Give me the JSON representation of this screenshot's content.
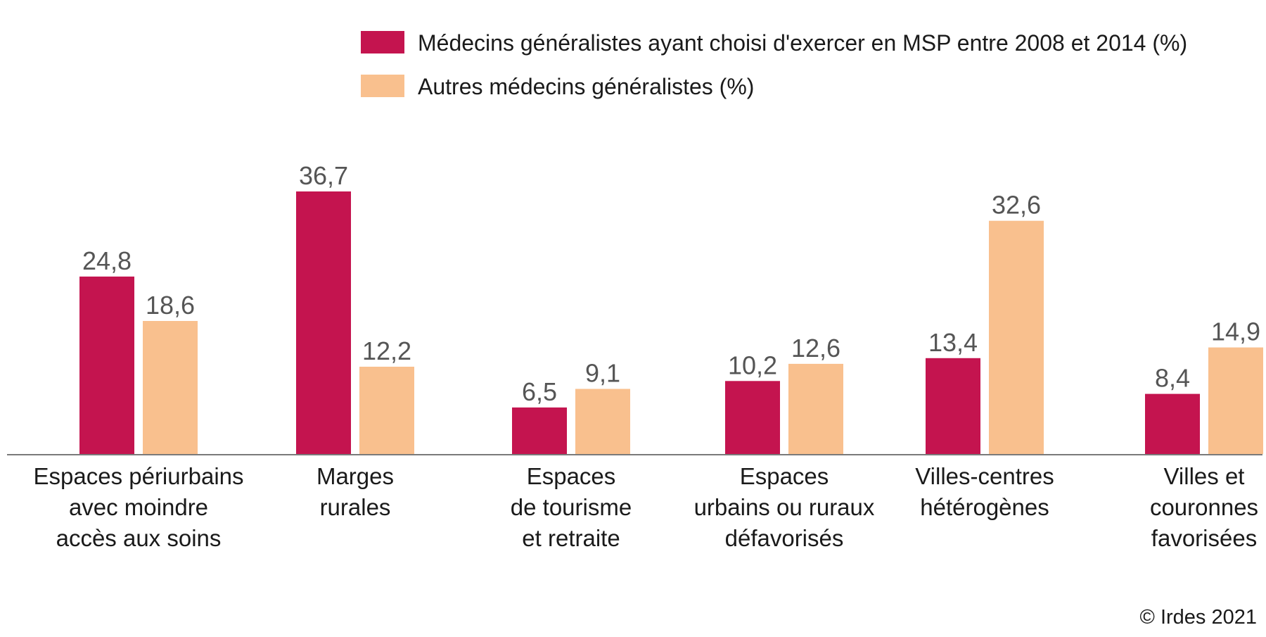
{
  "chart_data": {
    "type": "bar",
    "categories": [
      [
        "Espaces périurbains",
        "avec moindre",
        "accès aux soins"
      ],
      [
        "Marges",
        "rurales"
      ],
      [
        "Espaces",
        "de tourisme",
        "et retraite"
      ],
      [
        "Espaces",
        "urbains ou ruraux",
        "défavorisés"
      ],
      [
        "Villes-centres",
        "hétérogènes"
      ],
      [
        "Villes et",
        "couronnes",
        "favorisées"
      ]
    ],
    "series": [
      {
        "name": "Médecins généralistes ayant choisi d'exercer en MSP entre 2008 et 2014 (%)",
        "color": "#c4144f",
        "values": [
          24.8,
          36.7,
          6.5,
          10.2,
          13.4,
          8.4
        ],
        "labels": [
          "24,8",
          "36,7",
          "6,5",
          "10,2",
          "13,4",
          "8,4"
        ]
      },
      {
        "name": "Autres médecins généralistes (%)",
        "color": "#f9c08e",
        "values": [
          18.6,
          12.2,
          9.1,
          12.6,
          32.6,
          14.9
        ],
        "labels": [
          "18,6",
          "12,2",
          "9,1",
          "12,6",
          "32,6",
          "14,9"
        ]
      }
    ],
    "ylim": [
      0,
      36.7
    ],
    "grid": false,
    "legend_position": "top-right",
    "credit": "© Irdes 2021"
  }
}
